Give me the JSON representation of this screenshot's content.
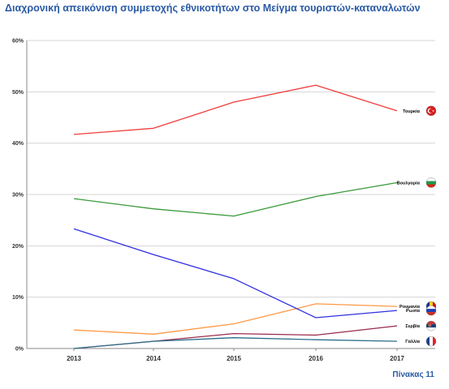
{
  "title": "Διαχρονική απεικόνιση συμμετοχής εθνικοτήτων στο Μείγμα τουριστών-καταναλωτών",
  "caption": "Πίνακας 11",
  "chart_data": {
    "type": "line",
    "title": "Διαχρονική απεικόνιση συμμετοχής εθνικοτήτων στο Μείγμα τουριστών-καταναλωτών",
    "x": [
      "2013",
      "2014",
      "2015",
      "2016",
      "2017"
    ],
    "ylim": [
      0,
      60
    ],
    "yticks": [
      "0%",
      "10%",
      "20%",
      "30%",
      "40%",
      "50%",
      "60%"
    ],
    "ytick_values": [
      0,
      10,
      20,
      30,
      40,
      50,
      60
    ],
    "grid": true,
    "series": [
      {
        "name": "Τουρκία",
        "color": "#f03c3c",
        "values": [
          41.7,
          42.9,
          48.0,
          51.3,
          46.3
        ],
        "flag": "turkey-flag-icon"
      },
      {
        "name": "Βουλγαρία",
        "color": "#3a9a3a",
        "values": [
          29.2,
          27.2,
          25.8,
          29.6,
          32.3
        ],
        "flag": "bulgaria-flag-icon"
      },
      {
        "name": "Ρουμανία",
        "color": "#ff9944",
        "values": [
          3.6,
          2.8,
          4.8,
          8.7,
          8.2
        ],
        "flag": "romania-flag-icon"
      },
      {
        "name": "Ρωσία",
        "color": "#3030e0",
        "values": [
          23.3,
          18.3,
          13.6,
          6.0,
          7.4
        ],
        "flag": "russia-flag-icon"
      },
      {
        "name": "Σερβία",
        "color": "#9b2a4a",
        "values": [
          0.0,
          1.4,
          2.9,
          2.6,
          4.4
        ],
        "flag": "serbia-flag-icon"
      },
      {
        "name": "Γαλλία",
        "color": "#2a6e8a",
        "values": [
          0.0,
          1.4,
          2.1,
          1.7,
          1.4
        ],
        "flag": "france-flag-icon"
      }
    ]
  }
}
